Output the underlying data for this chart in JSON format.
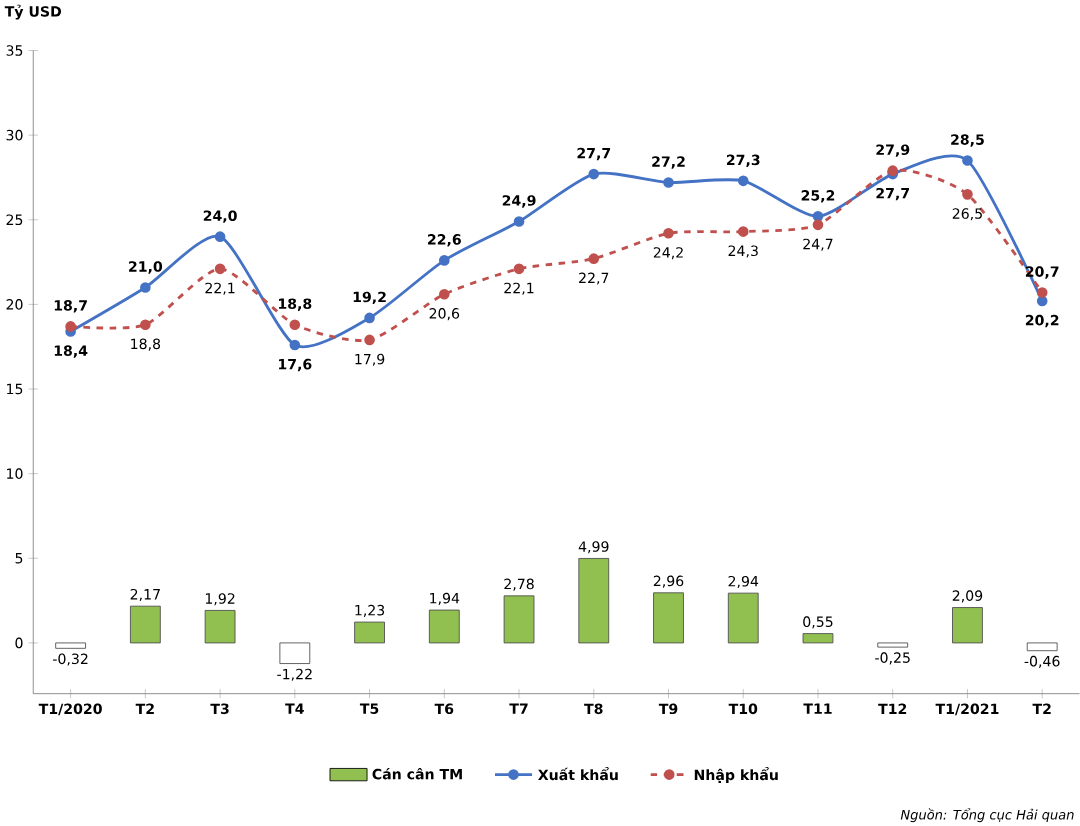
{
  "chart_data": {
    "type": "bar",
    "ylabel": "Tỷ USD",
    "categories": [
      "T1/2020",
      "T2",
      "T3",
      "T4",
      "T5",
      "T6",
      "T7",
      "T8",
      "T9",
      "T10",
      "T11",
      "T12",
      "T1/2021",
      "T2"
    ],
    "ylim": [
      -3,
      35
    ],
    "yticks": [
      0,
      5,
      10,
      15,
      20,
      25,
      30,
      35
    ],
    "legend": "bottom",
    "series": [
      {
        "name": "Cán cân TM",
        "colors": [
          "#ffffff",
          "#92c050",
          "#92c050",
          "#ffffff",
          "#92c050",
          "#92c050",
          "#92c050",
          "#92c050",
          "#92c050",
          "#92c050",
          "#92c050",
          "#ffffff",
          "#92c050",
          "#ffffff"
        ],
        "color": "#92c050",
        "values": [
          -0.32,
          2.17,
          1.92,
          -1.22,
          1.23,
          1.94,
          2.78,
          4.99,
          2.96,
          2.94,
          0.55,
          -0.25,
          2.09,
          -0.46
        ],
        "value_labels": [
          "-0,32",
          "2,17",
          "1,92",
          "-1,22",
          "1,23",
          "1,94",
          "2,78",
          "4,99",
          "2,96",
          "2,94",
          "0,55",
          "-0,25",
          "2,09",
          "-0,46"
        ]
      },
      {
        "name": "Xuất khẩu",
        "type": "line",
        "color": "#4472c4",
        "marker": "circle",
        "line_style": "solid",
        "values": [
          18.4,
          21.0,
          24.0,
          17.6,
          19.2,
          22.6,
          24.9,
          27.7,
          27.2,
          27.3,
          25.2,
          27.7,
          28.5,
          20.2
        ],
        "value_labels": [
          "18,4",
          "21,0",
          "24,0",
          "17,6",
          "19,2",
          "22,6",
          "24,9",
          "27,7",
          "27,2",
          "27,3",
          "25,2",
          "27,7",
          "28,5",
          "20,2"
        ]
      },
      {
        "name": "Nhập khẩu",
        "type": "line",
        "color": "#c0504d",
        "marker": "circle",
        "line_style": "dashed",
        "values": [
          18.7,
          18.8,
          22.1,
          18.8,
          17.9,
          20.6,
          22.1,
          22.7,
          24.2,
          24.3,
          24.7,
          27.9,
          26.5,
          20.7
        ],
        "value_labels": [
          "18,7",
          "18,8",
          "22,1",
          "18,8",
          "17,9",
          "20,6",
          "22,1",
          "22,7",
          "24,2",
          "24,3",
          "24,7",
          "27,9",
          "26,5",
          "20,7"
        ]
      }
    ],
    "annotations": [
      "Nguồn: Tổng cục Hải quan"
    ]
  }
}
